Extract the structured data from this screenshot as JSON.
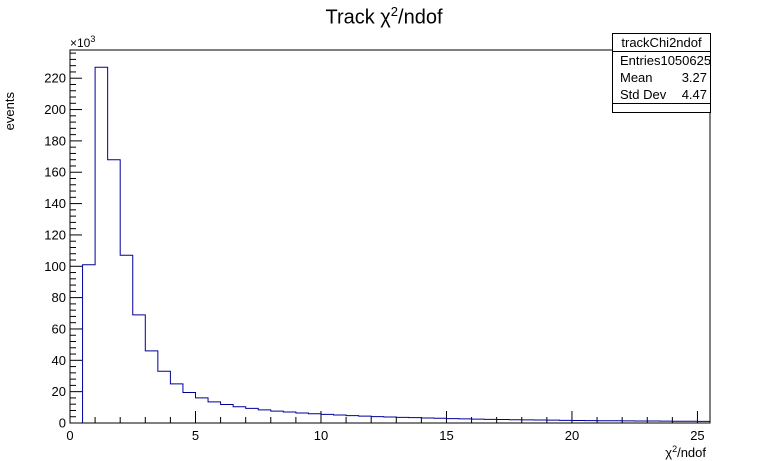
{
  "title": {
    "main": "Track χ",
    "sup": "2",
    "rest": "/ndof"
  },
  "stats": {
    "name": "trackChi2ndof",
    "rows": [
      {
        "label": "Entries",
        "value": "1050625"
      },
      {
        "label": "Mean",
        "value": "3.27"
      },
      {
        "label": "Std Dev",
        "value": "4.47"
      }
    ]
  },
  "chart_data": {
    "type": "bar",
    "title": "Track χ²/ndof",
    "xlabel": "χ²/ndof",
    "ylabel": "events",
    "y_multiplier": "×10³",
    "xlim": [
      0,
      25.5
    ],
    "ylim": [
      0,
      238
    ],
    "x_ticks": [
      0,
      5,
      10,
      15,
      20,
      25
    ],
    "x_tick_labels": [
      "0",
      "5",
      "10",
      "15",
      "20",
      "25"
    ],
    "y_ticks": [
      0,
      20,
      40,
      60,
      80,
      100,
      120,
      140,
      160,
      180,
      200,
      220
    ],
    "y_tick_labels": [
      "0",
      "20",
      "40",
      "60",
      "80",
      "100",
      "120",
      "140",
      "160",
      "180",
      "200",
      "220"
    ],
    "bin_width": 0.5,
    "bin_start": 0,
    "values": [
      0,
      101,
      227,
      168,
      107,
      69,
      46,
      33,
      25,
      19.5,
      16,
      13.5,
      11.8,
      10.4,
      9.3,
      8.4,
      7.6,
      7.0,
      6.4,
      5.9,
      5.5,
      5.1,
      4.7,
      4.4,
      4.1,
      3.8,
      3.6,
      3.4,
      3.2,
      3.0,
      2.8,
      2.65,
      2.5,
      2.35,
      2.2,
      2.1,
      2.0,
      1.9,
      1.8,
      1.7,
      1.6,
      1.55,
      1.45,
      1.4,
      1.35,
      1.3,
      1.25,
      1.2,
      1.15,
      1.1,
      1.05
    ],
    "line_color": "#000099",
    "grid": false,
    "legend": "top-right"
  }
}
